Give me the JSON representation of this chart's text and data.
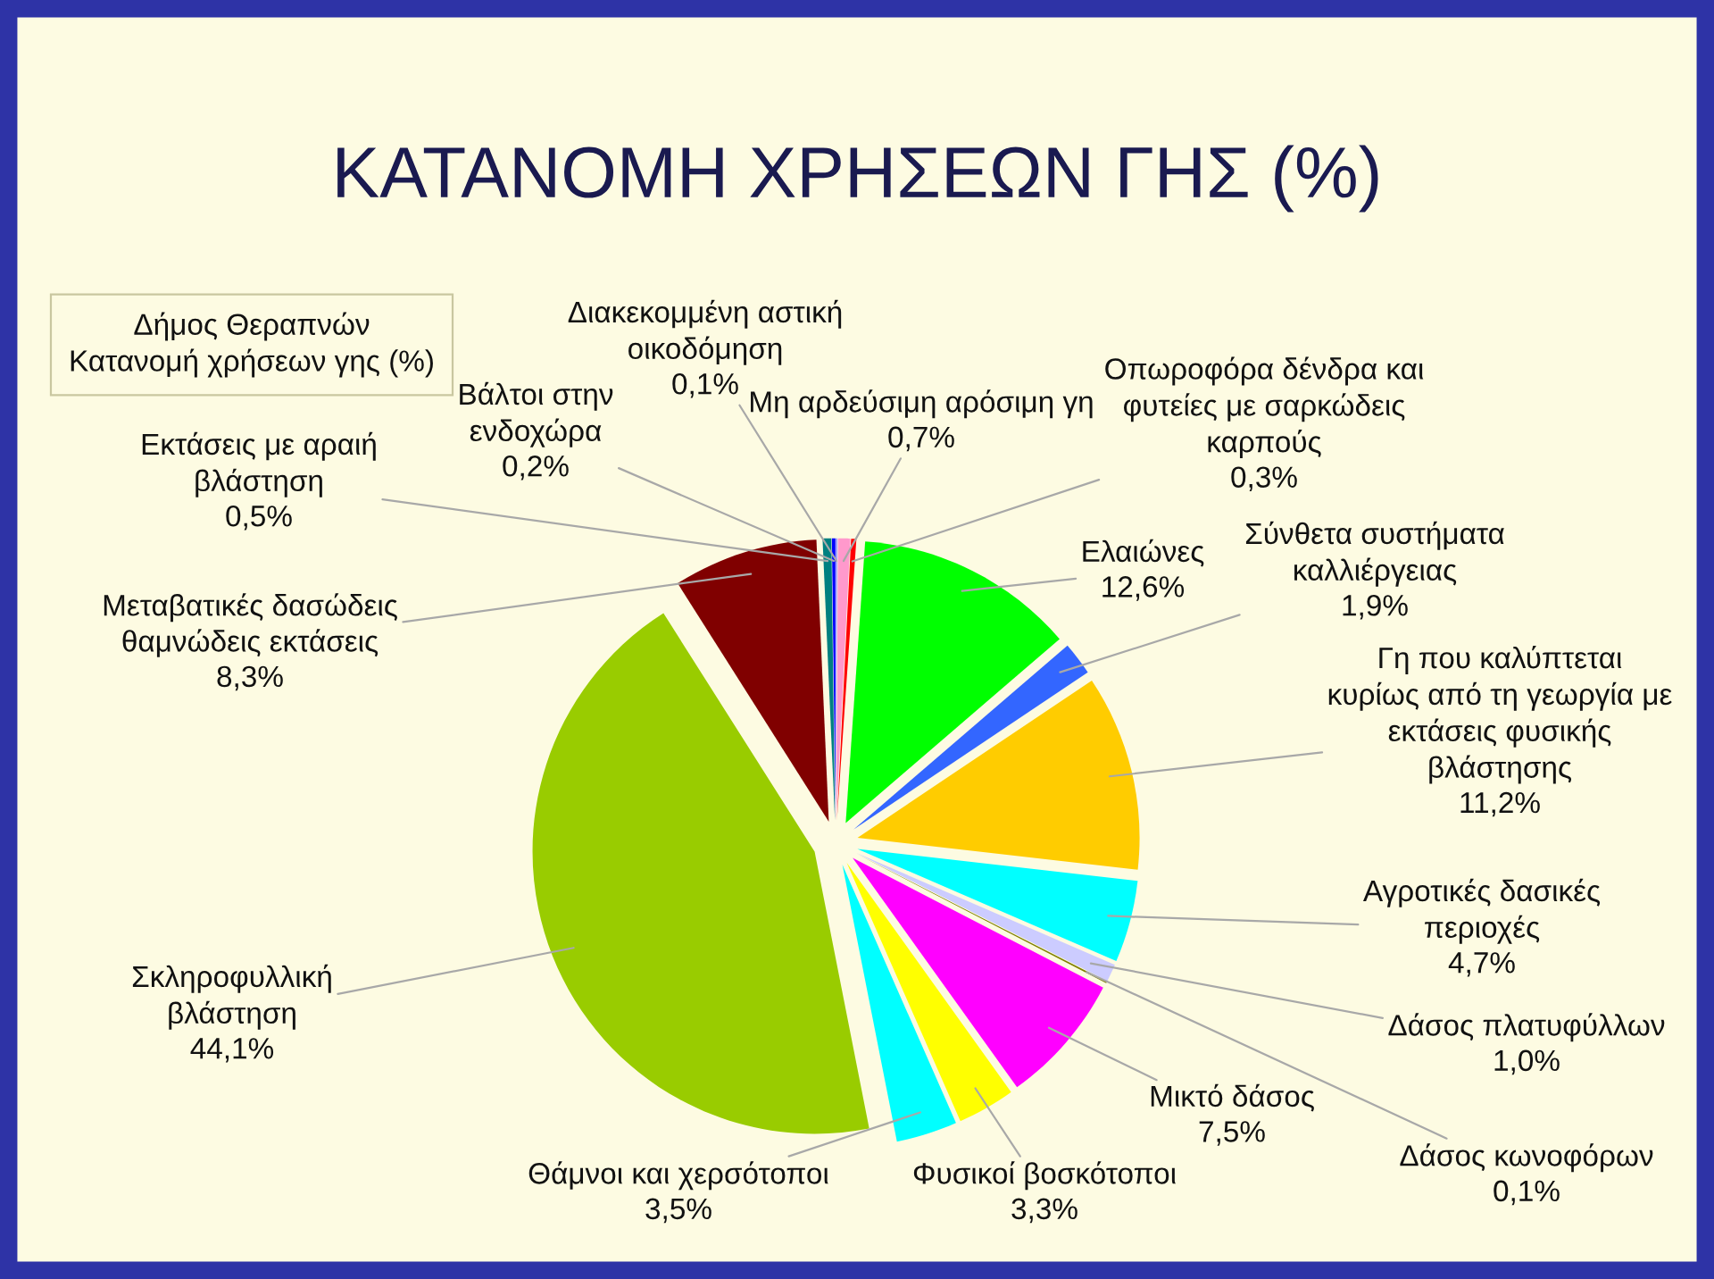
{
  "chart_data": {
    "type": "pie",
    "title": "ΚΑΤΑΝΟΜΗ ΧΡΗΣΕΩΝ ΓΗΣ (%)",
    "subtitle": "Δήμος Θεραπνών\nΚατανομή χρήσεων γης (%)",
    "categories": [
      "Διακεκομμένη αστική\nοικοδόμηση",
      "Μη αρδεύσιμη αρόσιμη γη",
      "Οπωροφόρα δένδρα και\nφυτείες με σαρκώδεις\nκαρπούς",
      "Ελαιώνες",
      "Σύνθετα συστήματα\nκαλλιέργειας",
      "Γη που καλύπτεται\nκυρίως από τη γεωργία με\nεκτάσεις φυσικής\nβλάστησης",
      "Αγροτικές δασικές\nπεριοχές",
      "Δάσος πλατυφύλλων",
      "Δάσος κωνοφόρων",
      "Μικτό δάσος",
      "Φυσικοί βοσκότοποι",
      "Θάμνοι και χερσότοποι",
      "Σκληροφυλλική\nβλάστηση",
      "Μεταβατικές δασώδεις\nθαμνώδεις εκτάσεις",
      "Εκτάσεις με αραιή\nβλάστηση",
      "Βάλτοι στην\nενδοχώρα"
    ],
    "values": [
      0.1,
      0.7,
      0.3,
      12.6,
      1.9,
      11.2,
      4.7,
      1.0,
      0.1,
      7.5,
      3.3,
      3.5,
      44.1,
      8.3,
      0.5,
      0.2
    ],
    "value_labels": [
      "0,1%",
      "0,7%",
      "0,3%",
      "12,6%",
      "1,9%",
      "11,2%",
      "4,7%",
      "1,0%",
      "0,1%",
      "7,5%",
      "3,3%",
      "3,5%",
      "44,1%",
      "8,3%",
      "0,5%",
      "0,2%"
    ],
    "colors": [
      "#9999ff",
      "#ff99cc",
      "#ff0000",
      "#00ff00",
      "#3366ff",
      "#ffcc00",
      "#00ffff",
      "#ccccff",
      "#808000",
      "#ff00ff",
      "#ffff00",
      "#00ffff",
      "#99cc00",
      "#800000",
      "#008080",
      "#0000ff"
    ]
  }
}
